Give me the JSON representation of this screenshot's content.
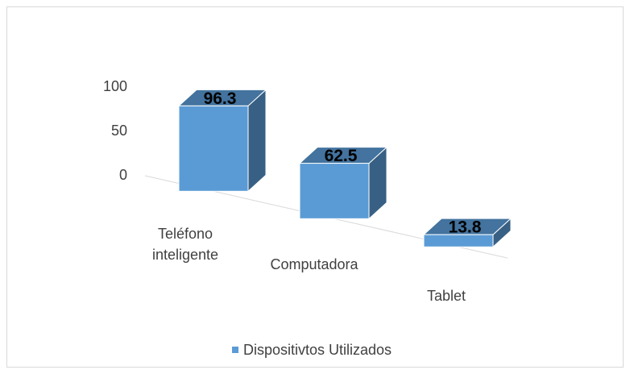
{
  "chart_data": {
    "type": "bar3d",
    "categories": [
      "Teléfono inteligente",
      "Computadora",
      "Tablet"
    ],
    "series": [
      {
        "name": "Dispositivtos Utilizados",
        "color": "#5b9bd5",
        "values": [
          96.3,
          62.5,
          13.8
        ]
      }
    ],
    "ylim": [
      0,
      100
    ],
    "yticks": [
      0,
      50,
      100
    ],
    "grid": false,
    "legend": "bottom"
  }
}
